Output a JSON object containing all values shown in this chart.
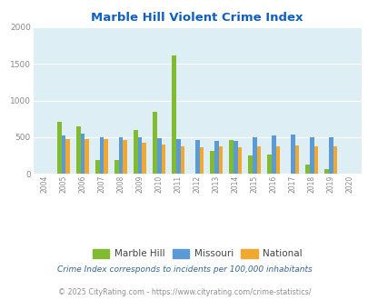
{
  "title": "Marble Hill Violent Crime Index",
  "years": [
    2004,
    2005,
    2006,
    2007,
    2008,
    2009,
    2010,
    2011,
    2012,
    2013,
    2014,
    2015,
    2016,
    2017,
    2018,
    2019,
    2020
  ],
  "marble_hill": [
    0,
    710,
    650,
    185,
    195,
    600,
    840,
    1615,
    0,
    320,
    460,
    250,
    265,
    0,
    125,
    70,
    0
  ],
  "missouri": [
    0,
    530,
    545,
    500,
    500,
    495,
    490,
    470,
    465,
    450,
    455,
    505,
    525,
    535,
    505,
    495,
    0
  ],
  "national": [
    0,
    470,
    475,
    475,
    460,
    430,
    400,
    370,
    365,
    370,
    365,
    370,
    380,
    385,
    370,
    370,
    0
  ],
  "bar_width": 0.22,
  "color_marble": "#80bb30",
  "color_missouri": "#5b9bd5",
  "color_national": "#f0a830",
  "bg_color": "#ddeef5",
  "ylim": [
    0,
    2000
  ],
  "yticks": [
    0,
    500,
    1000,
    1500,
    2000
  ],
  "legend_labels": [
    "Marble Hill",
    "Missouri",
    "National"
  ],
  "footnote1": "Crime Index corresponds to incidents per 100,000 inhabitants",
  "footnote2": "© 2025 CityRating.com - https://www.cityrating.com/crime-statistics/",
  "title_color": "#1060c0",
  "footnote1_color": "#336699",
  "footnote2_color": "#909090",
  "tick_color": "#888888"
}
